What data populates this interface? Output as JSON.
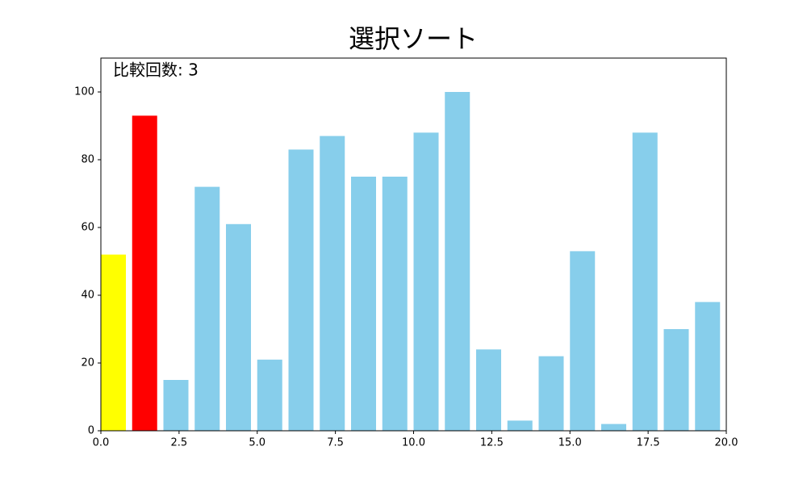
{
  "chart_data": {
    "type": "bar",
    "title": "選択ソート",
    "annotation": "比較回数: 3",
    "x": [
      0,
      1,
      2,
      3,
      4,
      5,
      6,
      7,
      8,
      9,
      10,
      11,
      12,
      13,
      14,
      15,
      16,
      17,
      18,
      19
    ],
    "values": [
      52,
      93,
      15,
      72,
      61,
      21,
      83,
      87,
      75,
      75,
      88,
      100,
      24,
      3,
      22,
      53,
      2,
      88,
      30,
      38
    ],
    "colors": [
      "#ffff00",
      "#ff0000",
      "#87ceeb",
      "#87ceeb",
      "#87ceeb",
      "#87ceeb",
      "#87ceeb",
      "#87ceeb",
      "#87ceeb",
      "#87ceeb",
      "#87ceeb",
      "#87ceeb",
      "#87ceeb",
      "#87ceeb",
      "#87ceeb",
      "#87ceeb",
      "#87ceeb",
      "#87ceeb",
      "#87ceeb",
      "#87ceeb"
    ],
    "xlim": [
      0,
      20
    ],
    "xticks": [
      {
        "value": 0,
        "label": "0.0"
      },
      {
        "value": 2.5,
        "label": "2.5"
      },
      {
        "value": 5,
        "label": "5.0"
      },
      {
        "value": 7.5,
        "label": "7.5"
      },
      {
        "value": 10,
        "label": "10.0"
      },
      {
        "value": 12.5,
        "label": "12.5"
      },
      {
        "value": 15,
        "label": "15.0"
      },
      {
        "value": 17.5,
        "label": "17.5"
      },
      {
        "value": 20,
        "label": "20.0"
      }
    ],
    "ylim": [
      0,
      110
    ],
    "yticks": [
      0,
      20,
      40,
      60,
      80,
      100
    ]
  }
}
